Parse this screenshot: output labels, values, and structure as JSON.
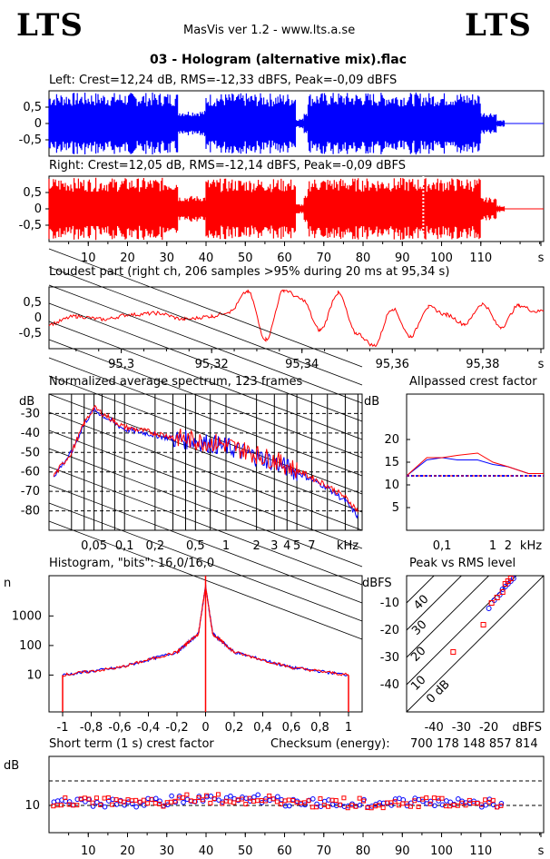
{
  "header": {
    "logo_left": "LTS",
    "logo_right": "LTS",
    "app": "MasVis ver 1.2 - www.lts.a.se",
    "file": "03 - Hologram (alternative mix).flac"
  },
  "colors": {
    "left": "#0000ff",
    "right": "#ff0000",
    "axis": "#000000",
    "grid": "#000000"
  },
  "chart_data": [
    {
      "id": "left",
      "type": "area",
      "title": "Left: Crest=12,24 dB, RMS=-12,33 dBFS, Peak=-0,09 dBFS",
      "ylim": [
        -1,
        1
      ],
      "ytick_labels": [
        "0,5",
        "0",
        "-0,5"
      ],
      "xlim": [
        0,
        126
      ],
      "segments": [
        [
          0,
          33,
          0.95
        ],
        [
          33,
          40,
          0.4
        ],
        [
          40,
          63,
          0.93
        ],
        [
          63,
          65,
          0.15
        ],
        [
          65,
          66,
          0.4
        ],
        [
          66,
          110,
          0.95
        ],
        [
          110,
          114,
          0.35
        ],
        [
          114,
          116,
          0.1
        ]
      ]
    },
    {
      "id": "right",
      "type": "area",
      "title": "Right: Crest=12,05 dB, RMS=-12,14 dBFS, Peak=-0,09 dBFS",
      "ylim": [
        -1,
        1
      ],
      "ytick_labels": [
        "0,5",
        "0",
        "-0,5"
      ],
      "xlim": [
        0,
        126
      ],
      "xtick_labels": [
        "10",
        "20",
        "30",
        "40",
        "50",
        "60",
        "70",
        "80",
        "90",
        "100",
        "110",
        "s"
      ],
      "marker_x": 95.34,
      "segments": [
        [
          0,
          33,
          0.95
        ],
        [
          33,
          40,
          0.4
        ],
        [
          40,
          63,
          0.93
        ],
        [
          63,
          65,
          0.15
        ],
        [
          65,
          66,
          0.4
        ],
        [
          66,
          110,
          0.95
        ],
        [
          110,
          114,
          0.35
        ],
        [
          114,
          116,
          0.1
        ]
      ]
    },
    {
      "id": "loudest",
      "type": "line",
      "title": "Loudest part (right ch, 206 samples >95% during 20 ms at 95,34 s)",
      "ylim": [
        -1,
        1
      ],
      "ytick_labels": [
        "0,5",
        "0",
        "-0,5"
      ],
      "xlim": [
        95.284,
        95.3935
      ],
      "xtick_labels": [
        "95,3",
        "95,32",
        "95,34",
        "95,36",
        "95,38",
        "s"
      ],
      "x": [
        95.284,
        95.29,
        95.296,
        95.302,
        95.308,
        95.314,
        95.32,
        95.324,
        95.328,
        95.332,
        95.336,
        95.34,
        95.344,
        95.348,
        95.352,
        95.356,
        95.36,
        95.364,
        95.368,
        95.372,
        95.376,
        95.38,
        95.384,
        95.388,
        95.392,
        95.3935
      ],
      "y": [
        -0.2,
        0.05,
        -0.05,
        0.1,
        0.15,
        -0.05,
        0.05,
        0.2,
        0.85,
        -0.7,
        0.9,
        0.6,
        -0.4,
        0.8,
        -0.5,
        -0.9,
        0.3,
        -0.6,
        0.35,
        0.1,
        -0.2,
        0.45,
        -0.3,
        0.4,
        0.2,
        0.25
      ]
    },
    {
      "id": "spectrum",
      "type": "line",
      "title": "Normalized average spectrum, 123 frames",
      "ylabel": "dB",
      "ytick_labels": [
        "-30",
        "-40",
        "-50",
        "-60",
        "-70",
        "-80"
      ],
      "ylim": [
        -90,
        -20
      ],
      "xtick_labels": [
        "0,05",
        "0,1",
        "0,2",
        "0,5",
        "1",
        "2",
        "3",
        "4",
        "5",
        "7",
        "kHz"
      ],
      "x_khz": [
        0.02,
        0.03,
        0.04,
        0.05,
        0.08,
        0.1,
        0.2,
        0.3,
        0.5,
        0.8,
        1,
        2,
        3,
        5,
        7,
        10,
        15,
        20
      ],
      "series": [
        {
          "name": "left",
          "values": [
            -62,
            -50,
            -35,
            -28,
            -35,
            -38,
            -41,
            -43,
            -44,
            -46,
            -47,
            -52,
            -55,
            -60,
            -64,
            -68,
            -75,
            -83
          ]
        },
        {
          "name": "right",
          "values": [
            -62,
            -50,
            -35,
            -27,
            -34,
            -37,
            -40,
            -42,
            -44,
            -45,
            -46,
            -51,
            -54,
            -59,
            -63,
            -67,
            -73,
            -80
          ]
        }
      ]
    },
    {
      "id": "allpassed",
      "type": "line",
      "title": "Allpassed crest factor",
      "ylabel": "dB",
      "ytick_labels": [
        "20",
        "15",
        "10",
        "5"
      ],
      "ylim": [
        0,
        25
      ],
      "xtick_labels": [
        "0,1",
        "1",
        "2",
        "kHz"
      ],
      "x_khz": [
        0.02,
        0.05,
        0.1,
        0.2,
        0.5,
        1,
        2,
        5,
        10
      ],
      "series": [
        {
          "name": "left",
          "values": [
            12,
            15.5,
            16,
            15.5,
            15.5,
            14.5,
            14,
            12.5,
            12.5
          ]
        },
        {
          "name": "right",
          "values": [
            12,
            16,
            16,
            16.5,
            17,
            15,
            14,
            12.5,
            12.5
          ]
        }
      ],
      "reference_db": 12
    },
    {
      "id": "histogram",
      "type": "line",
      "title": "Histogram, \"bits\": 16,0/16,0",
      "ylabel": "n",
      "ytick_labels": [
        "1000",
        "100",
        "10"
      ],
      "xtick_labels": [
        "-1",
        "-0,8",
        "-0,6",
        "-0,4",
        "-0,2",
        "0",
        "0,2",
        "0,4",
        "0,6",
        "0,8",
        "1"
      ],
      "x": [
        -1,
        -0.6,
        -0.2,
        -0.05,
        0,
        0.05,
        0.2,
        0.6,
        1
      ],
      "y": [
        10,
        18,
        60,
        250,
        10000,
        250,
        60,
        18,
        10
      ]
    },
    {
      "id": "peak_rms",
      "type": "scatter",
      "title": "Peak vs RMS level",
      "ylabel": "dBFS",
      "xlabel": "dBFS",
      "ytick_labels": [
        "-10",
        "-20",
        "-30",
        "-40"
      ],
      "xtick_labels": [
        "-40",
        "-30",
        "-20"
      ],
      "diag_labels": [
        "40",
        "30",
        "20",
        "10",
        "0 dB"
      ],
      "points_left": [
        [
          -18,
          -9
        ],
        [
          -16,
          -7
        ],
        [
          -15,
          -5
        ],
        [
          -14,
          -4
        ],
        [
          -13,
          -3
        ],
        [
          -12,
          -2
        ],
        [
          -11,
          -1
        ],
        [
          -20,
          -12
        ]
      ],
      "points_right": [
        [
          -19,
          -10
        ],
        [
          -17,
          -8
        ],
        [
          -15,
          -6
        ],
        [
          -14,
          -3
        ],
        [
          -13,
          -2
        ],
        [
          -12,
          -1
        ],
        [
          -22,
          -18
        ],
        [
          -33,
          -28
        ]
      ]
    },
    {
      "id": "short_crest",
      "type": "scatter",
      "title": "Short term (1 s) crest factor",
      "checksum_label": "Checksum (energy):",
      "checksum_value": "700 178 148 857 814",
      "ylabel": "dB",
      "ytick_labels": [
        "10"
      ],
      "xtick_labels": [
        "10",
        "20",
        "30",
        "40",
        "50",
        "60",
        "70",
        "80",
        "90",
        "100",
        "110",
        "s"
      ],
      "xlim": [
        0,
        126
      ]
    }
  ]
}
